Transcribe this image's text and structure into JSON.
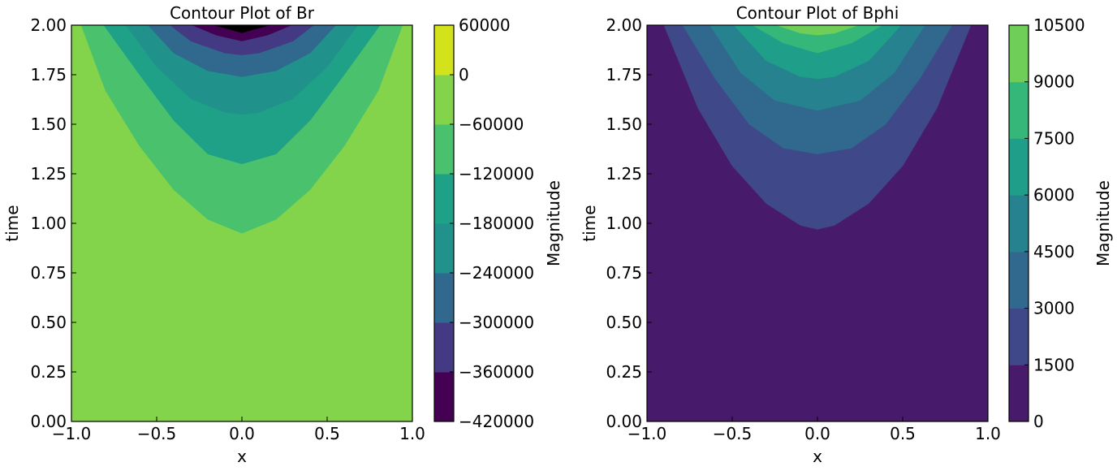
{
  "chart_data": [
    {
      "type": "contour",
      "title": "Contour Plot of Br",
      "xlabel": "x",
      "ylabel": "time",
      "colorbar_label": "Magnitude",
      "xlim": [
        -1.0,
        1.0
      ],
      "ylim": [
        0.0,
        2.0
      ],
      "x_ticks": [
        "−1.0",
        "−0.5",
        "0.0",
        "0.5",
        "1.0"
      ],
      "y_ticks": [
        "0.00",
        "0.25",
        "0.50",
        "0.75",
        "1.00",
        "1.25",
        "1.50",
        "1.75",
        "2.00"
      ],
      "colorbar_ticks": [
        "−420000",
        "−360000",
        "−300000",
        "−240000",
        "−180000",
        "−120000",
        "−60000",
        "0",
        "60000"
      ],
      "colorbar_levels": [
        -420000,
        -360000,
        -300000,
        -240000,
        -180000,
        -120000,
        -60000,
        0,
        60000
      ],
      "colors": [
        "#46085c",
        "#443983",
        "#31688e",
        "#21918c",
        "#35b779",
        "#90d743",
        "#fde725"
      ],
      "band_colors": [
        "#440154",
        "#443983",
        "#31688e",
        "#21918c",
        "#1fa187",
        "#4ac16d",
        "#84d44b",
        "#d2e21b"
      ],
      "contour_boundaries": [
        {
          "level": -60000,
          "x": [
            -0.942,
            -0.8,
            -0.6,
            -0.4,
            -0.2,
            0.0,
            0.2,
            0.4,
            0.6,
            0.8,
            0.942
          ],
          "t": [
            2.0,
            1.67,
            1.39,
            1.17,
            1.02,
            0.95,
            1.02,
            1.17,
            1.39,
            1.67,
            2.0
          ]
        },
        {
          "level": -120000,
          "x": [
            -0.81,
            -0.6,
            -0.4,
            -0.2,
            0.0,
            0.2,
            0.4,
            0.6,
            0.81
          ],
          "t": [
            2.0,
            1.75,
            1.52,
            1.35,
            1.3,
            1.35,
            1.52,
            1.75,
            2.0
          ]
        },
        {
          "level": -180000,
          "x": [
            -0.68,
            -0.5,
            -0.3,
            -0.1,
            0.0,
            0.1,
            0.3,
            0.5,
            0.68
          ],
          "t": [
            2.0,
            1.79,
            1.63,
            1.56,
            1.55,
            1.56,
            1.63,
            1.79,
            2.0
          ]
        },
        {
          "level": -240000,
          "x": [
            -0.55,
            -0.4,
            -0.2,
            0.0,
            0.2,
            0.4,
            0.55
          ],
          "t": [
            2.0,
            1.86,
            1.77,
            1.74,
            1.77,
            1.86,
            2.0
          ]
        },
        {
          "level": -300000,
          "x": [
            -0.42,
            -0.3,
            -0.1,
            0.0,
            0.1,
            0.3,
            0.42
          ],
          "t": [
            2.0,
            1.92,
            1.86,
            1.85,
            1.86,
            1.92,
            2.0
          ]
        },
        {
          "level": -360000,
          "x": [
            -0.29,
            -0.15,
            0.0,
            0.15,
            0.29
          ],
          "t": [
            2.0,
            1.95,
            1.92,
            1.95,
            2.0
          ]
        },
        {
          "level": -420000,
          "x": [
            -0.17,
            -0.08,
            0.0,
            0.08,
            0.17
          ],
          "t": [
            2.0,
            1.98,
            1.96,
            1.98,
            2.0
          ]
        }
      ]
    },
    {
      "type": "contour",
      "title": "Contour Plot of Bphi",
      "xlabel": "x",
      "ylabel": "time",
      "colorbar_label": "Magnitude",
      "xlim": [
        -1.0,
        1.0
      ],
      "ylim": [
        0.0,
        2.0
      ],
      "x_ticks": [
        "−1.0",
        "−0.5",
        "0.0",
        "0.5",
        "1.0"
      ],
      "y_ticks": [
        "0.00",
        "0.25",
        "0.50",
        "0.75",
        "1.00",
        "1.25",
        "1.50",
        "1.75",
        "2.00"
      ],
      "colorbar_ticks": [
        "0",
        "1500",
        "3000",
        "4500",
        "6000",
        "7500",
        "9000",
        "10500"
      ],
      "colorbar_levels": [
        0,
        1500,
        3000,
        4500,
        6000,
        7500,
        9000,
        10500
      ],
      "colors": [
        "#481a6c",
        "#3f4889",
        "#31688e",
        "#26828e",
        "#1f9e89",
        "#35b779",
        "#6ece58",
        "#d5e21a"
      ],
      "contour_boundaries": [
        {
          "level": 1500,
          "x": [
            -0.9,
            -0.7,
            -0.5,
            -0.3,
            -0.1,
            0.0,
            0.1,
            0.3,
            0.5,
            0.7,
            0.9
          ],
          "t": [
            2.0,
            1.58,
            1.29,
            1.1,
            0.99,
            0.97,
            0.99,
            1.1,
            1.29,
            1.58,
            2.0
          ]
        },
        {
          "level": 3000,
          "x": [
            -0.79,
            -0.6,
            -0.4,
            -0.2,
            0.0,
            0.2,
            0.4,
            0.6,
            0.79
          ],
          "t": [
            2.0,
            1.73,
            1.5,
            1.38,
            1.35,
            1.38,
            1.5,
            1.73,
            2.0
          ]
        },
        {
          "level": 4500,
          "x": [
            -0.63,
            -0.45,
            -0.25,
            0.0,
            0.25,
            0.45,
            0.63
          ],
          "t": [
            2.0,
            1.76,
            1.62,
            1.57,
            1.62,
            1.76,
            2.0
          ]
        },
        {
          "level": 6000,
          "x": [
            -0.49,
            -0.3,
            -0.1,
            0.0,
            0.1,
            0.3,
            0.49
          ],
          "t": [
            2.0,
            1.82,
            1.74,
            1.73,
            1.74,
            1.82,
            2.0
          ]
        },
        {
          "level": 7500,
          "x": [
            -0.38,
            -0.2,
            0.0,
            0.2,
            0.38
          ],
          "t": [
            2.0,
            1.91,
            1.86,
            1.91,
            2.0
          ]
        },
        {
          "level": 9000,
          "x": [
            -0.24,
            -0.1,
            0.0,
            0.1,
            0.24
          ],
          "t": [
            2.0,
            1.96,
            1.95,
            1.96,
            2.0
          ]
        }
      ]
    }
  ]
}
